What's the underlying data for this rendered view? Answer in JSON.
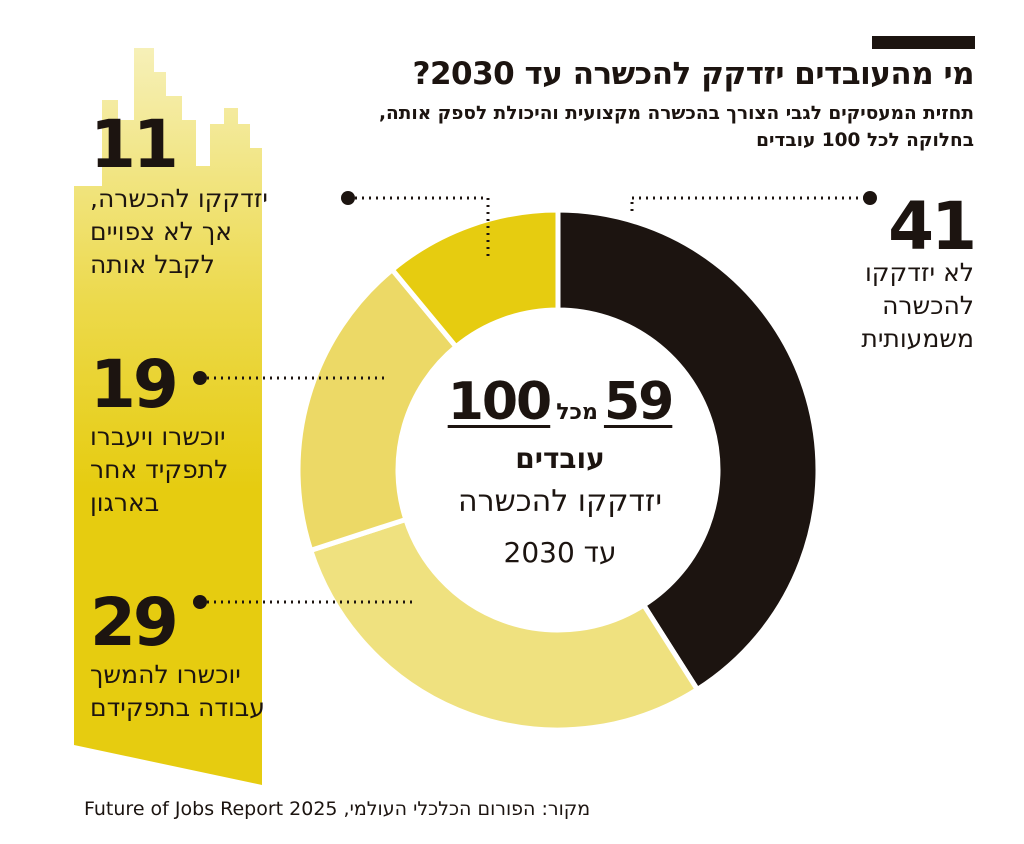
{
  "title": "מי מהעובדים יזדקק להכשרה עד 2030?",
  "subtitle_line1": "תחזית המעסיקים לגבי הצורך בהכשרה מקצועית והיכולת לספק אותה,",
  "subtitle_line2": "בחלוקה לכל 100 עובדים",
  "center": {
    "value": "59",
    "of_word": "מכל",
    "total": "100",
    "workers_word": "עובדים",
    "line1": "יזדקקו להכשרה",
    "line2": "עד 2030"
  },
  "labels": {
    "n41": "41",
    "l41": [
      "לא יזדקקו",
      "להכשרה",
      "משמעותית"
    ],
    "n11": "11",
    "l11": [
      "יזדקקו להכשרה,",
      "אך לא צפויים",
      "לקבל אותה"
    ],
    "n19": "19",
    "l19": [
      "יוכשרו ויעברו",
      "לתפקיד אחר",
      "בארגון"
    ],
    "n29": "29",
    "l29": [
      "יוכשרו להמשך",
      "עבודה בתפקידם"
    ]
  },
  "source": "מקור: הפורום הכלכלי העולמי, Future of Jobs Report 2025",
  "chart_data": {
    "type": "pie",
    "categories": [
      "לא יזדקקו להכשרה משמעותית",
      "יוכשרו להמשך עבודה בתפקידם",
      "יוכשרו ויעברו לתפקיד אחר בארגון",
      "יזדקקו להכשרה, אך לא צפויים לקבל אותה"
    ],
    "values": [
      41,
      29,
      19,
      11
    ],
    "colors": [
      "#1c1410",
      "#efe17f",
      "#ecd966",
      "#e6cc10"
    ],
    "total": 100
  },
  "colors": {
    "dark": "#1c1410",
    "yellow": "#e6cc10",
    "accent_bar": "#1c1410"
  }
}
